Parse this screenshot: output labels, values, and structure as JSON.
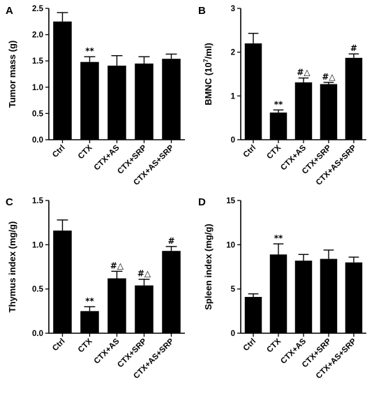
{
  "chart_data": [
    {
      "panel": "A",
      "type": "bar",
      "categories": [
        "Ctrl",
        "CTX",
        "CTX+AS",
        "CTX+SRP",
        "CTX+AS+SRP"
      ],
      "values": [
        2.25,
        1.48,
        1.41,
        1.45,
        1.54
      ],
      "errors": [
        0.17,
        0.1,
        0.19,
        0.13,
        0.09
      ],
      "annotations": [
        "",
        "**",
        "",
        "",
        ""
      ],
      "ylabel": "Tumor mass (g)",
      "ylabel_sup": "",
      "ylabel_post": "",
      "ylim": [
        0,
        2.5
      ],
      "yticks": [
        0.0,
        0.5,
        1.0,
        1.5,
        2.0,
        2.5
      ],
      "ytick_labels": [
        "0.0",
        "0.5",
        "1.0",
        "1.5",
        "2.0",
        "2.5"
      ]
    },
    {
      "panel": "B",
      "type": "bar",
      "categories": [
        "Ctrl",
        "CTX",
        "CTX+AS",
        "CTX+SRP",
        "CTX+AS+SRP"
      ],
      "values": [
        2.2,
        0.62,
        1.31,
        1.27,
        1.87
      ],
      "errors": [
        0.23,
        0.06,
        0.1,
        0.04,
        0.09
      ],
      "annotations": [
        "",
        "**",
        "#△",
        "#△",
        "#"
      ],
      "ylabel": "BMNC (10",
      "ylabel_sup": "7",
      "ylabel_post": "/ml)",
      "ylim": [
        0,
        3
      ],
      "yticks": [
        0,
        1,
        2,
        3
      ],
      "ytick_labels": [
        "0",
        "1",
        "2",
        "3"
      ]
    },
    {
      "panel": "C",
      "type": "bar",
      "categories": [
        "Ctrl",
        "CTX",
        "CTX+AS",
        "CTX+SRP",
        "CTX+AS+SRP"
      ],
      "values": [
        1.16,
        0.25,
        0.62,
        0.54,
        0.93
      ],
      "errors": [
        0.12,
        0.05,
        0.08,
        0.07,
        0.05
      ],
      "annotations": [
        "",
        "**",
        "#△",
        "#△",
        "#"
      ],
      "ylabel": "Thymus index (mg/g)",
      "ylabel_sup": "",
      "ylabel_post": "",
      "ylim": [
        0,
        1.5
      ],
      "yticks": [
        0.0,
        0.5,
        1.0,
        1.5
      ],
      "ytick_labels": [
        "0.0",
        "0.5",
        "1.0",
        "1.5"
      ]
    },
    {
      "panel": "D",
      "type": "bar",
      "categories": [
        "Ctrl",
        "CTX",
        "CTX+AS",
        "CTX+SRP",
        "CTX+AS+SRP"
      ],
      "values": [
        4.1,
        8.9,
        8.2,
        8.4,
        8.0
      ],
      "errors": [
        0.35,
        1.2,
        0.7,
        1.0,
        0.6
      ],
      "annotations": [
        "",
        "**",
        "",
        "",
        ""
      ],
      "ylabel": "Spleen index (mg/g)",
      "ylabel_sup": "",
      "ylabel_post": "",
      "ylim": [
        0,
        15
      ],
      "yticks": [
        0,
        5,
        10,
        15
      ],
      "ytick_labels": [
        "0",
        "5",
        "10",
        "15"
      ]
    }
  ]
}
